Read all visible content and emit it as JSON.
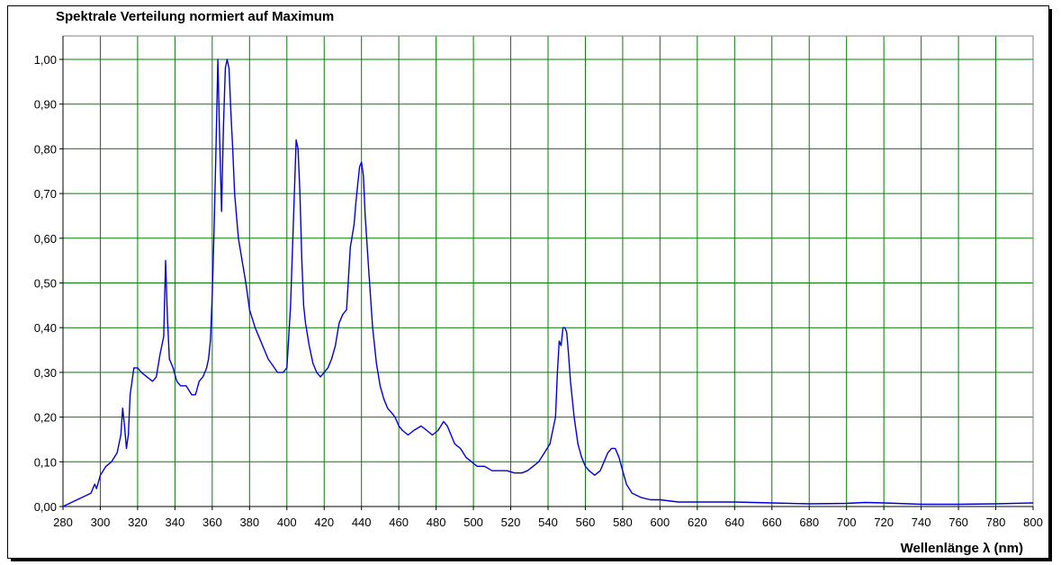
{
  "chart_data": {
    "type": "line",
    "title": "Spektrale Verteilung normiert auf Maximum",
    "xlabel": "Wellenlänge λ (nm)",
    "ylabel": "",
    "xlim": [
      280,
      800
    ],
    "ylim": [
      0,
      1.05
    ],
    "x_ticks": [
      "280",
      "300",
      "320",
      "340",
      "360",
      "380",
      "400",
      "420",
      "440",
      "460",
      "480",
      "500",
      "520",
      "540",
      "560",
      "580",
      "600",
      "620",
      "640",
      "660",
      "680",
      "700",
      "720",
      "740",
      "760",
      "780",
      "800"
    ],
    "y_ticks": [
      "0,00",
      "0,10",
      "0,20",
      "0,30",
      "0,40",
      "0,50",
      "0,60",
      "0,70",
      "0,80",
      "0,90",
      "1,00"
    ],
    "grid": true,
    "line_color": "#0000dd",
    "grid_color": "#008000",
    "series": [
      {
        "x": [
          280,
          285,
          290,
          295,
          297,
          298,
          300,
          303,
          306,
          309,
          311,
          312,
          313,
          314,
          315,
          316,
          318,
          320,
          322,
          325,
          328,
          330,
          332,
          334,
          335,
          336,
          337,
          339,
          341,
          343,
          346,
          349,
          351,
          353,
          355,
          357,
          358,
          359,
          360,
          361,
          362,
          363,
          364,
          365,
          366,
          367,
          368,
          369,
          370,
          371,
          372,
          374,
          376,
          378,
          380,
          383,
          386,
          390,
          395,
          398,
          400,
          402,
          404,
          405,
          406,
          407,
          408,
          409,
          410,
          412,
          414,
          416,
          418,
          420,
          422,
          424,
          426,
          428,
          430,
          432,
          434,
          436,
          437,
          438,
          439,
          440,
          441,
          442,
          444,
          446,
          448,
          450,
          452,
          454,
          456,
          458,
          460,
          462,
          465,
          468,
          472,
          475,
          478,
          481,
          484,
          486,
          488,
          490,
          493,
          496,
          499,
          502,
          506,
          510,
          514,
          518,
          522,
          526,
          529,
          532,
          535,
          538,
          541,
          544,
          545,
          546,
          547,
          548,
          549,
          550,
          551,
          552,
          554,
          556,
          558,
          560,
          562,
          565,
          568,
          570,
          572,
          574,
          576,
          578,
          580,
          582,
          585,
          590,
          595,
          600,
          610,
          620,
          640,
          660,
          680,
          700,
          710,
          720,
          740,
          760,
          780,
          800
        ],
        "y": [
          0.0,
          0.01,
          0.02,
          0.03,
          0.05,
          0.04,
          0.07,
          0.09,
          0.1,
          0.12,
          0.16,
          0.22,
          0.18,
          0.13,
          0.16,
          0.25,
          0.31,
          0.31,
          0.3,
          0.29,
          0.28,
          0.29,
          0.34,
          0.38,
          0.55,
          0.42,
          0.33,
          0.31,
          0.28,
          0.27,
          0.27,
          0.25,
          0.25,
          0.28,
          0.29,
          0.31,
          0.33,
          0.37,
          0.47,
          0.62,
          0.8,
          1.0,
          0.82,
          0.66,
          0.85,
          0.98,
          1.0,
          0.98,
          0.88,
          0.8,
          0.7,
          0.6,
          0.55,
          0.5,
          0.44,
          0.4,
          0.37,
          0.33,
          0.3,
          0.3,
          0.31,
          0.45,
          0.7,
          0.82,
          0.8,
          0.7,
          0.55,
          0.45,
          0.41,
          0.36,
          0.32,
          0.3,
          0.29,
          0.3,
          0.31,
          0.33,
          0.36,
          0.41,
          0.43,
          0.44,
          0.58,
          0.63,
          0.68,
          0.72,
          0.76,
          0.77,
          0.74,
          0.65,
          0.52,
          0.4,
          0.32,
          0.27,
          0.24,
          0.22,
          0.21,
          0.2,
          0.18,
          0.17,
          0.16,
          0.17,
          0.18,
          0.17,
          0.16,
          0.17,
          0.19,
          0.18,
          0.16,
          0.14,
          0.13,
          0.11,
          0.1,
          0.09,
          0.09,
          0.08,
          0.08,
          0.08,
          0.075,
          0.075,
          0.08,
          0.09,
          0.1,
          0.12,
          0.14,
          0.2,
          0.3,
          0.37,
          0.36,
          0.4,
          0.4,
          0.39,
          0.34,
          0.28,
          0.2,
          0.14,
          0.11,
          0.09,
          0.08,
          0.07,
          0.08,
          0.1,
          0.12,
          0.13,
          0.13,
          0.11,
          0.08,
          0.05,
          0.03,
          0.02,
          0.015,
          0.015,
          0.01,
          0.01,
          0.01,
          0.008,
          0.006,
          0.007,
          0.009,
          0.008,
          0.005,
          0.005,
          0.006,
          0.008
        ]
      }
    ]
  }
}
